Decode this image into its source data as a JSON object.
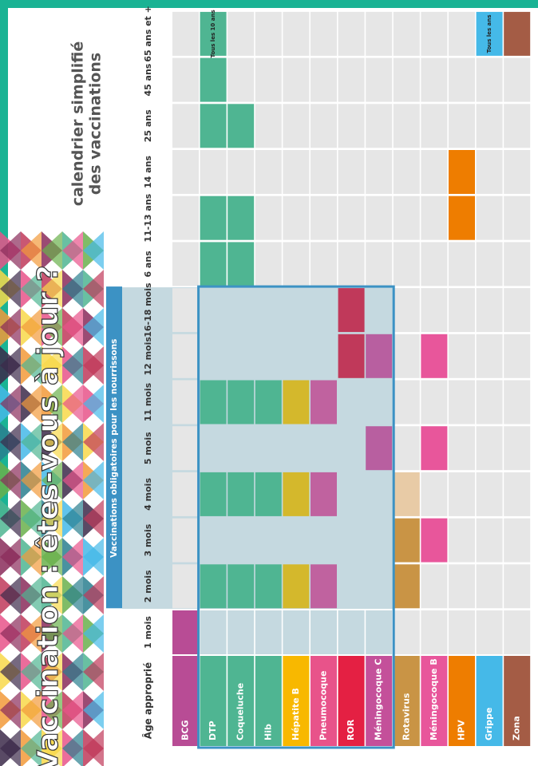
{
  "title": "Vaccination : êtes-vous à jour ?",
  "subtitle": [
    "calendrier simplifié",
    "des vaccinations"
  ],
  "banner": "Vaccinations obligatoires pour les nourrissons",
  "age_header": "Âge approprié",
  "ages": [
    "1 mois",
    "2 mois",
    "3 mois",
    "4 mois",
    "5 mois",
    "11 mois",
    "12 mois",
    "16-18 mois",
    "6 ans",
    "11-13 ans",
    "14 ans",
    "25 ans",
    "45 ans",
    "65 ans et +"
  ],
  "vaccines": [
    {
      "name": "BCG",
      "color": "#b84c95",
      "doses": [
        0
      ]
    },
    {
      "name": "DTP",
      "color": "#4fb592",
      "doses": [
        1,
        3,
        5,
        8,
        9,
        11,
        12,
        13
      ],
      "note": "Tous les 10 ans"
    },
    {
      "name": "Coqueluche",
      "color": "#4fb592",
      "doses": [
        1,
        3,
        5,
        8,
        9,
        11
      ]
    },
    {
      "name": "Hib",
      "color": "#4fb592",
      "doses": [
        1,
        3,
        5
      ]
    },
    {
      "name": "Hépatite B",
      "color": "#d4b82c",
      "label_color": "#f8b800",
      "doses": [
        1,
        3,
        5
      ]
    },
    {
      "name": "Pneumocoque",
      "color": "#c0629f",
      "label_color": "#e8538a",
      "doses": [
        1,
        3,
        5
      ]
    },
    {
      "name": "ROR",
      "color": "#c0395a",
      "label_color": "#e42043",
      "doses": [
        6,
        7
      ]
    },
    {
      "name": "Méningocoque C",
      "color": "#b85fa0",
      "label_color": "#c4509a",
      "doses": [
        4,
        6
      ]
    },
    {
      "name": "Rotavirus",
      "color": "#c99445",
      "doses": [
        1,
        2
      ],
      "optional_doses": [
        3
      ],
      "optional_color": "#e8cba6"
    },
    {
      "name": "Méningocoque B",
      "color": "#e8569b",
      "doses": [
        2,
        4,
        6
      ]
    },
    {
      "name": "HPV",
      "color": "#ee7d00",
      "doses": [
        9,
        10
      ]
    },
    {
      "name": "Grippe",
      "color": "#45b9e8",
      "doses": [
        13
      ],
      "note": "Tous les ans"
    },
    {
      "name": "Zona",
      "color": "#a45c45",
      "doses": [
        13
      ]
    }
  ]
}
